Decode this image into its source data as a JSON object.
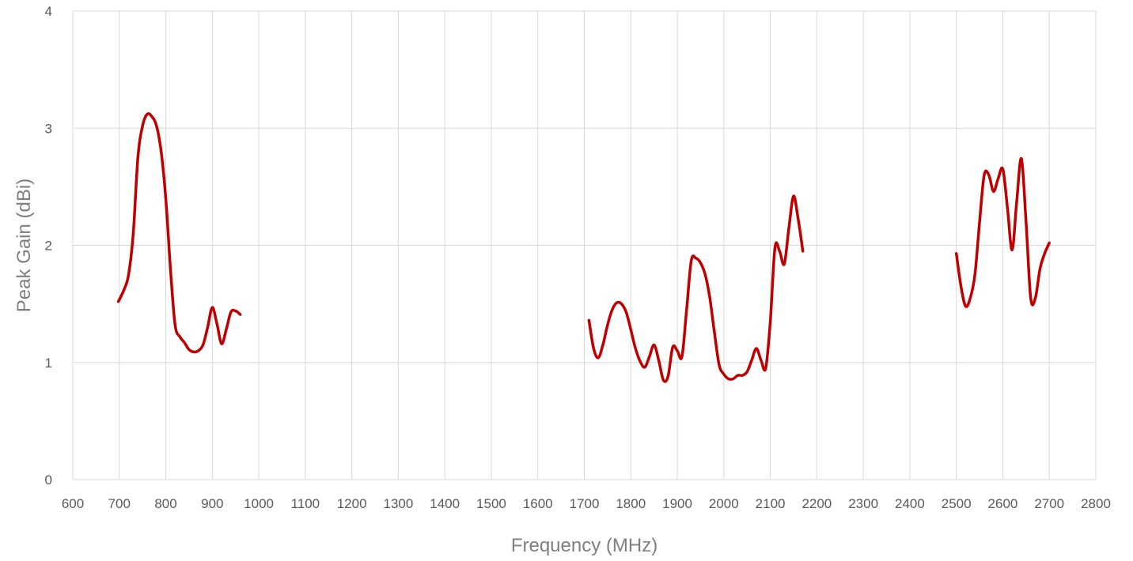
{
  "chart_data": {
    "type": "line",
    "xlabel": "Frequency (MHz)",
    "ylabel": "Peak Gain (dBi)",
    "xlim": [
      600,
      2800
    ],
    "ylim": [
      0,
      4
    ],
    "xticks": [
      600,
      700,
      800,
      900,
      1000,
      1100,
      1200,
      1300,
      1400,
      1500,
      1600,
      1700,
      1800,
      1900,
      2000,
      2100,
      2200,
      2300,
      2400,
      2500,
      2600,
      2700,
      2800
    ],
    "yticks": [
      0,
      1,
      2,
      3,
      4
    ],
    "grid": true,
    "line_color": "#c00000",
    "series": [
      {
        "segments": [
          [
            [
              698,
              1.52
            ],
            [
              710,
              1.62
            ],
            [
              720,
              1.75
            ],
            [
              730,
              2.1
            ],
            [
              740,
              2.75
            ],
            [
              750,
              3.02
            ],
            [
              760,
              3.12
            ],
            [
              770,
              3.1
            ],
            [
              780,
              3.02
            ],
            [
              790,
              2.8
            ],
            [
              800,
              2.4
            ],
            [
              810,
              1.8
            ],
            [
              820,
              1.32
            ],
            [
              830,
              1.22
            ],
            [
              840,
              1.17
            ],
            [
              850,
              1.11
            ],
            [
              860,
              1.09
            ],
            [
              870,
              1.1
            ],
            [
              880,
              1.15
            ],
            [
              890,
              1.3
            ],
            [
              900,
              1.47
            ],
            [
              910,
              1.33
            ],
            [
              920,
              1.16
            ],
            [
              930,
              1.28
            ],
            [
              940,
              1.43
            ],
            [
              950,
              1.44
            ],
            [
              960,
              1.41
            ]
          ],
          [
            [
              1710,
              1.36
            ],
            [
              1720,
              1.12
            ],
            [
              1730,
              1.04
            ],
            [
              1740,
              1.15
            ],
            [
              1750,
              1.32
            ],
            [
              1760,
              1.45
            ],
            [
              1770,
              1.51
            ],
            [
              1780,
              1.5
            ],
            [
              1790,
              1.43
            ],
            [
              1800,
              1.28
            ],
            [
              1810,
              1.12
            ],
            [
              1820,
              1.01
            ],
            [
              1830,
              0.96
            ],
            [
              1840,
              1.05
            ],
            [
              1850,
              1.15
            ],
            [
              1860,
              1.02
            ],
            [
              1870,
              0.85
            ],
            [
              1880,
              0.88
            ],
            [
              1890,
              1.13
            ],
            [
              1900,
              1.1
            ],
            [
              1910,
              1.05
            ],
            [
              1920,
              1.45
            ],
            [
              1930,
              1.87
            ],
            [
              1940,
              1.89
            ],
            [
              1950,
              1.85
            ],
            [
              1960,
              1.75
            ],
            [
              1970,
              1.55
            ],
            [
              1980,
              1.25
            ],
            [
              1990,
              0.98
            ],
            [
              2000,
              0.9
            ],
            [
              2010,
              0.86
            ],
            [
              2020,
              0.86
            ],
            [
              2030,
              0.89
            ],
            [
              2040,
              0.89
            ],
            [
              2050,
              0.92
            ],
            [
              2060,
              1.02
            ],
            [
              2070,
              1.12
            ],
            [
              2080,
              1.02
            ],
            [
              2090,
              0.95
            ],
            [
              2100,
              1.35
            ],
            [
              2110,
              1.98
            ],
            [
              2120,
              1.95
            ],
            [
              2130,
              1.84
            ],
            [
              2140,
              2.15
            ],
            [
              2150,
              2.42
            ],
            [
              2160,
              2.22
            ],
            [
              2170,
              1.95
            ]
          ],
          [
            [
              2500,
              1.93
            ],
            [
              2510,
              1.65
            ],
            [
              2520,
              1.48
            ],
            [
              2530,
              1.55
            ],
            [
              2540,
              1.75
            ],
            [
              2550,
              2.2
            ],
            [
              2560,
              2.6
            ],
            [
              2570,
              2.6
            ],
            [
              2580,
              2.46
            ],
            [
              2590,
              2.57
            ],
            [
              2600,
              2.65
            ],
            [
              2610,
              2.32
            ],
            [
              2620,
              1.96
            ],
            [
              2630,
              2.38
            ],
            [
              2640,
              2.74
            ],
            [
              2650,
              2.2
            ],
            [
              2660,
              1.55
            ],
            [
              2670,
              1.55
            ],
            [
              2680,
              1.8
            ],
            [
              2690,
              1.93
            ],
            [
              2700,
              2.02
            ]
          ]
        ]
      }
    ]
  }
}
